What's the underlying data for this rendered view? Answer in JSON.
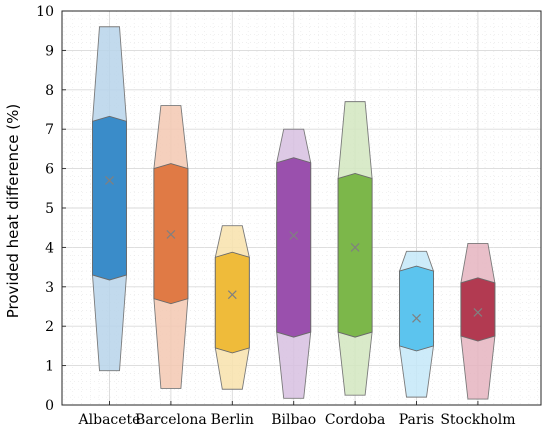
{
  "chart_data": {
    "type": "violin",
    "title": "",
    "xlabel": "",
    "ylabel": "Provided heat difference (%)",
    "ylim": [
      0,
      10
    ],
    "yticks": [
      0,
      1,
      2,
      3,
      4,
      5,
      6,
      7,
      8,
      9,
      10
    ],
    "grid": true,
    "minor_grid": true,
    "categories": [
      "Albacete",
      "Barcelona",
      "Berlin",
      "Bilbao",
      "Cordoba",
      "Paris",
      "Stockholm"
    ],
    "series": [
      {
        "category": "Albacete",
        "min": 0.87,
        "q1": 3.3,
        "mean": 5.7,
        "q3": 7.2,
        "max": 9.6,
        "color": "#3a8cc9",
        "light": "#b7d3ea"
      },
      {
        "category": "Barcelona",
        "min": 0.42,
        "q1": 2.7,
        "mean": 4.33,
        "q3": 6.0,
        "max": 7.6,
        "color": "#e07a45",
        "light": "#f3c8b1"
      },
      {
        "category": "Berlin",
        "min": 0.4,
        "q1": 1.45,
        "mean": 2.8,
        "q3": 3.75,
        "max": 4.55,
        "color": "#efbb3a",
        "light": "#f8e2ab"
      },
      {
        "category": "Bilbao",
        "min": 0.17,
        "q1": 1.85,
        "mean": 4.3,
        "q3": 6.15,
        "max": 7.0,
        "color": "#9a50ad",
        "light": "#d7bfe0"
      },
      {
        "category": "Cordoba",
        "min": 0.25,
        "q1": 1.85,
        "mean": 4.0,
        "q3": 5.75,
        "max": 7.7,
        "color": "#7cb74a",
        "light": "#d2e6bf"
      },
      {
        "category": "Paris",
        "min": 0.2,
        "q1": 1.5,
        "mean": 2.2,
        "q3": 3.4,
        "max": 3.9,
        "color": "#5cc4ee",
        "light": "#c4e8f8"
      },
      {
        "category": "Stockholm",
        "min": 0.15,
        "q1": 1.75,
        "mean": 2.35,
        "q3": 3.1,
        "max": 4.1,
        "color": "#b23a51",
        "light": "#e5b4bf"
      }
    ]
  }
}
